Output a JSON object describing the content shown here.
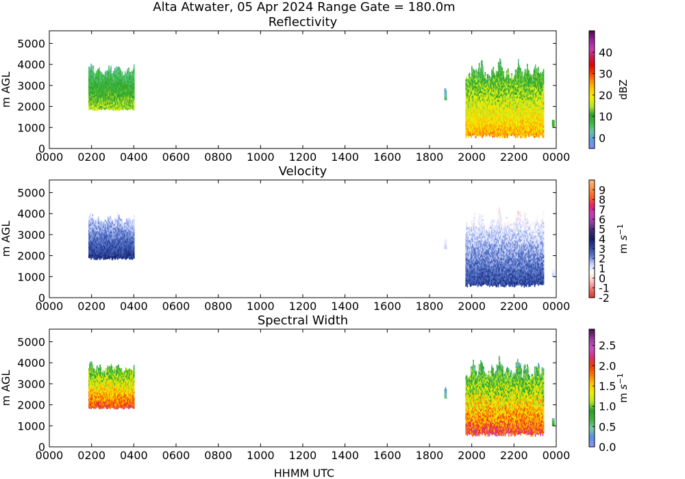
{
  "figure_title": "Alta Atwater, 05 Apr 2024 Range Gate = 180.0m",
  "xlabel": "HHMM UTC",
  "chart_data": [
    {
      "type": "heatmap",
      "title": "Reflectivity",
      "ylabel": "m AGL",
      "colorbar_label": "dBZ",
      "colorbar_range": [
        -5,
        50
      ],
      "colorbar_ticks": [
        "0",
        "10",
        "20",
        "30",
        "40"
      ],
      "colorbar_tick_values": [
        0,
        10,
        20,
        30,
        40
      ],
      "colormap": [
        "#7b8ef5",
        "#5aa0e6",
        "#69c3a5",
        "#3cba3c",
        "#2da02d",
        "#b5e62d",
        "#f0f000",
        "#ffd200",
        "#ff9600",
        "#ff3c00",
        "#e60000",
        "#c81e5a",
        "#c83cb4",
        "#a020a0",
        "#501050"
      ],
      "x_ticks": [
        "0000",
        "0200",
        "0400",
        "0600",
        "0800",
        "1000",
        "1200",
        "1400",
        "1600",
        "1800",
        "2000",
        "2200",
        "0000"
      ],
      "xlim_hours": [
        0,
        24
      ],
      "y_ticks": [
        "0",
        "1000",
        "2000",
        "3000",
        "4000",
        "5000"
      ],
      "ylim": [
        0,
        5600
      ],
      "echo_periods": [
        {
          "start_hours": 1.85,
          "end_hours": 4.0,
          "base_m": 1800,
          "top_m": 4100,
          "value_range": [
            2,
            15
          ]
        },
        {
          "start_hours": 18.7,
          "end_hours": 18.8,
          "base_m": 2300,
          "top_m": 2900,
          "value_range": [
            -3,
            5
          ]
        },
        {
          "start_hours": 19.7,
          "end_hours": 23.4,
          "base_m": 500,
          "top_m": 4300,
          "value_range": [
            5,
            25
          ]
        },
        {
          "start_hours": 23.8,
          "end_hours": 23.9,
          "base_m": 1000,
          "top_m": 1400,
          "value_range": [
            5,
            12
          ]
        }
      ]
    },
    {
      "type": "heatmap",
      "title": "Velocity",
      "ylabel": "m AGL",
      "colorbar_label": "m s^-1",
      "colorbar_range": [
        -2,
        10
      ],
      "colorbar_ticks": [
        "-2",
        "-1",
        "0",
        "1",
        "2",
        "3",
        "4",
        "5",
        "6",
        "7",
        "8",
        "9"
      ],
      "colorbar_tick_values": [
        -2,
        -1,
        0,
        1,
        2,
        3,
        4,
        5,
        6,
        7,
        8,
        9
      ],
      "colormap": [
        "#e03c1e",
        "#f07878",
        "#ffc8c8",
        "#ffffff",
        "#c8d2ff",
        "#5a78c8",
        "#2d46a0",
        "#141e64",
        "#3c2878",
        "#963ca0",
        "#c83cc8",
        "#e61e6e",
        "#ff5a1e",
        "#ff8c3c",
        "#ffb478"
      ],
      "x_ticks": [
        "0000",
        "0200",
        "0400",
        "0600",
        "0800",
        "1000",
        "1200",
        "1400",
        "1600",
        "1800",
        "2000",
        "2200",
        "0000"
      ],
      "xlim_hours": [
        0,
        24
      ],
      "y_ticks": [
        "0",
        "1000",
        "2000",
        "3000",
        "4000",
        "5000"
      ],
      "ylim": [
        0,
        5600
      ],
      "echo_periods": [
        {
          "start_hours": 1.85,
          "end_hours": 4.0,
          "base_m": 1800,
          "top_m": 4100,
          "value_range": [
            1,
            3.5
          ]
        },
        {
          "start_hours": 18.7,
          "end_hours": 18.8,
          "base_m": 2300,
          "top_m": 2900,
          "value_range": [
            0.5,
            1.5
          ]
        },
        {
          "start_hours": 19.7,
          "end_hours": 23.4,
          "base_m": 500,
          "top_m": 4300,
          "value_range": [
            0.2,
            3.2
          ]
        },
        {
          "start_hours": 23.8,
          "end_hours": 23.9,
          "base_m": 1000,
          "top_m": 1400,
          "value_range": [
            0.5,
            1.5
          ]
        }
      ]
    },
    {
      "type": "heatmap",
      "title": "Spectral Width",
      "ylabel": "m AGL",
      "colorbar_label": "m s^-1",
      "colorbar_range": [
        0,
        2.9
      ],
      "colorbar_ticks": [
        "0.0",
        "0.5",
        "1.0",
        "1.5",
        "2.0",
        "2.5"
      ],
      "colorbar_tick_values": [
        0,
        0.5,
        1.0,
        1.5,
        2.0,
        2.5
      ],
      "colormap": [
        "#8c96f5",
        "#5a8ce6",
        "#78c8a0",
        "#3cb43c",
        "#28a028",
        "#b4e628",
        "#f0f000",
        "#ffc800",
        "#ff7800",
        "#f03c00",
        "#dc2d78",
        "#c850c8",
        "#a03ca0",
        "#501450"
      ],
      "x_ticks": [
        "0000",
        "0200",
        "0400",
        "0600",
        "0800",
        "1000",
        "1200",
        "1400",
        "1600",
        "1800",
        "2000",
        "2200",
        "0000"
      ],
      "xlim_hours": [
        0,
        24
      ],
      "y_ticks": [
        "0",
        "1000",
        "2000",
        "3000",
        "4000",
        "5000"
      ],
      "ylim": [
        0,
        5600
      ],
      "echo_periods": [
        {
          "start_hours": 1.85,
          "end_hours": 4.0,
          "base_m": 1800,
          "top_m": 4100,
          "value_range": [
            0.6,
            2.0
          ]
        },
        {
          "start_hours": 18.7,
          "end_hours": 18.8,
          "base_m": 2300,
          "top_m": 2900,
          "value_range": [
            0.2,
            0.5
          ]
        },
        {
          "start_hours": 19.7,
          "end_hours": 23.4,
          "base_m": 500,
          "top_m": 4300,
          "value_range": [
            0.4,
            2.1
          ]
        },
        {
          "start_hours": 23.8,
          "end_hours": 23.9,
          "base_m": 1000,
          "top_m": 1400,
          "value_range": [
            0.4,
            0.8
          ]
        }
      ]
    }
  ]
}
